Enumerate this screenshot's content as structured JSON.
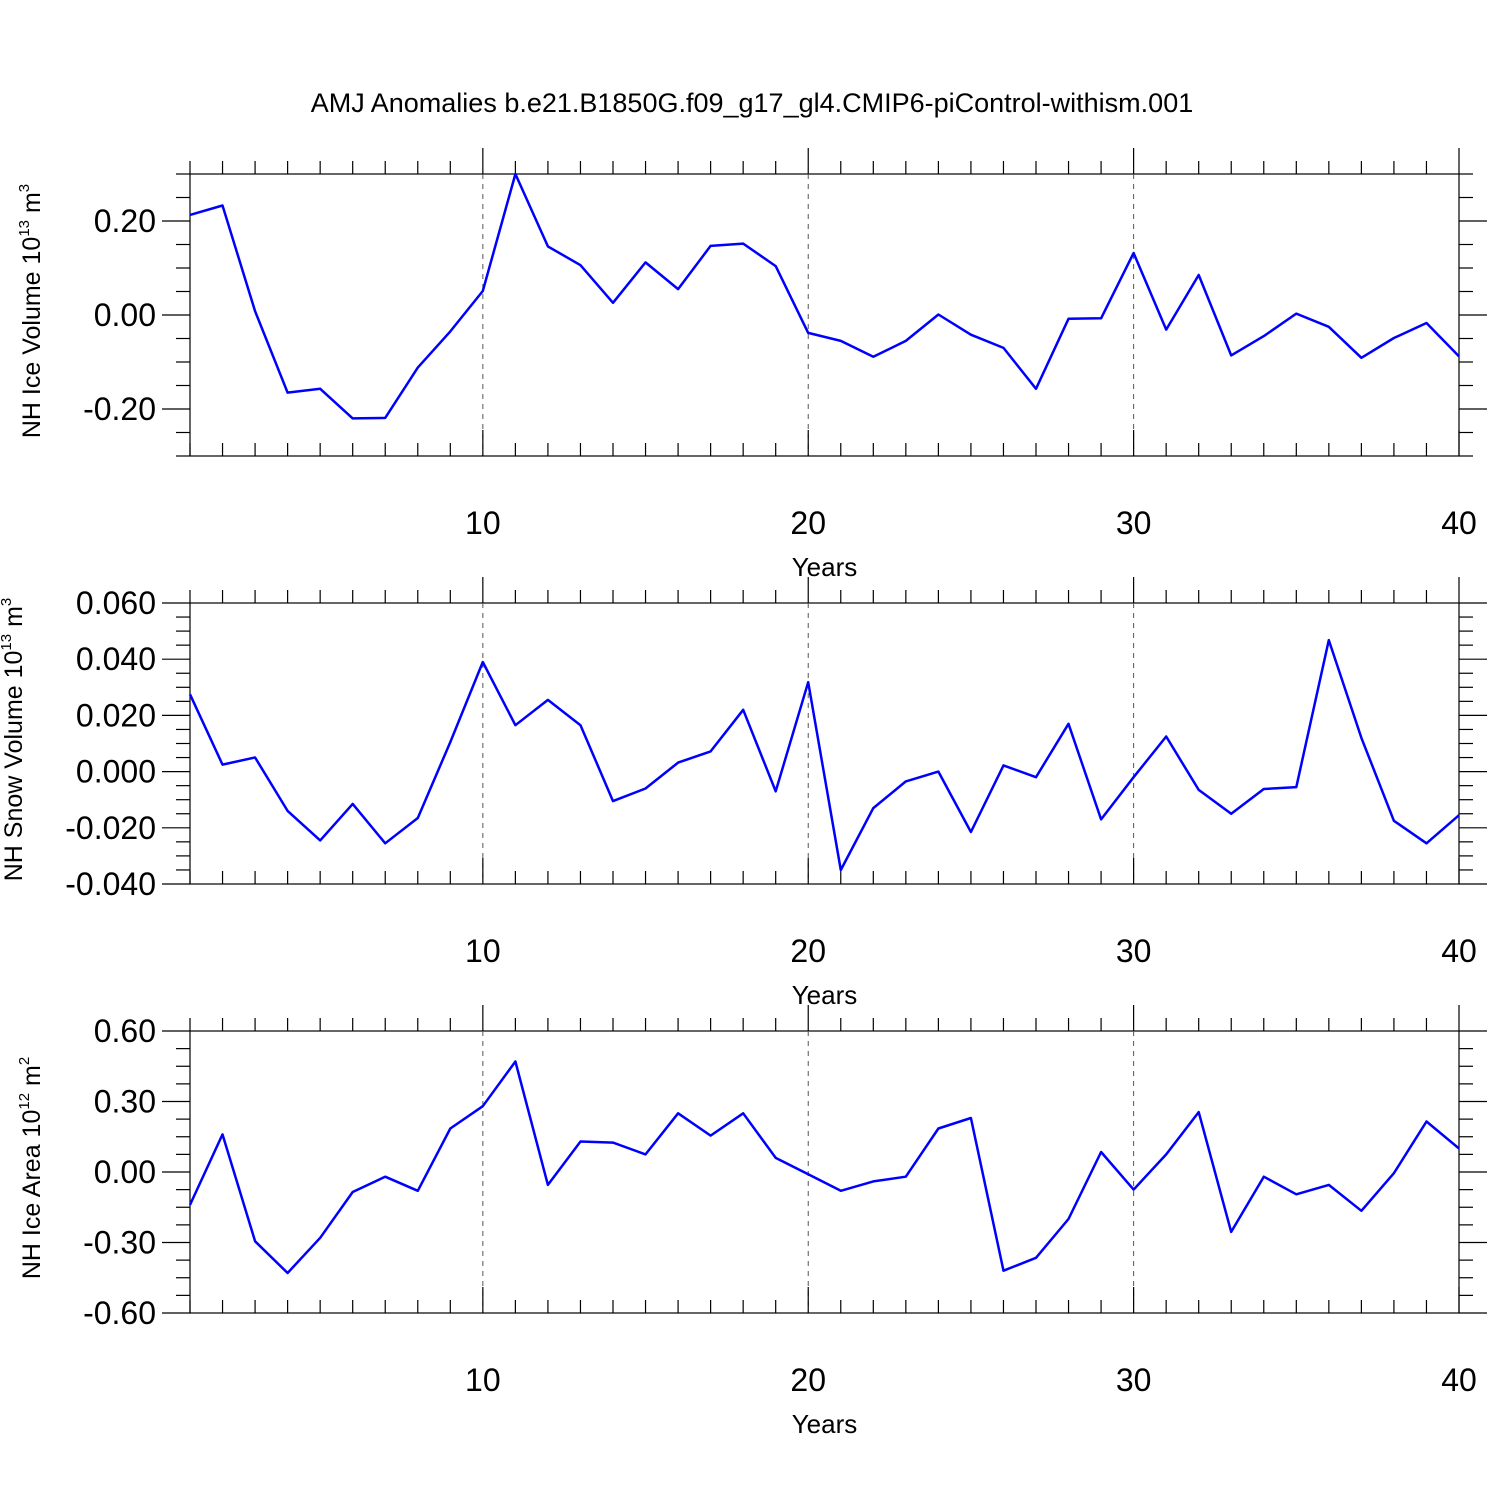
{
  "title": "AMJ Anomalies b.e21.B1850G.f09_g17_gl4.CMIP6-piControl-withism.001",
  "series_color": "#0000ff",
  "chart_data": [
    {
      "type": "line",
      "xlabel": "Years",
      "ylabel": {
        "text": "NH Ice Volume 10",
        "sup": "13",
        "unit": " m",
        "unit_sup": "3"
      },
      "xlim": [
        1,
        40
      ],
      "ylim": [
        -0.3,
        0.3
      ],
      "xticks": [
        10,
        20,
        30,
        40
      ],
      "xtick_labels": [
        "10",
        "20",
        "30",
        "40"
      ],
      "yticks": [
        -0.2,
        0.0,
        0.2
      ],
      "ytick_labels": [
        "-0.20",
        "0.00",
        "0.20"
      ],
      "grid_x": [
        10,
        20,
        30
      ],
      "x": [
        1,
        2,
        3,
        4,
        5,
        6,
        7,
        8,
        9,
        10,
        11,
        12,
        13,
        14,
        15,
        16,
        17,
        18,
        19,
        20,
        21,
        22,
        23,
        24,
        25,
        26,
        27,
        28,
        29,
        30,
        31,
        32,
        33,
        34,
        35,
        36,
        37,
        38,
        39,
        40
      ],
      "values": [
        0.213,
        0.233,
        0.008,
        -0.165,
        -0.157,
        -0.22,
        -0.219,
        -0.112,
        -0.035,
        0.051,
        0.3,
        0.146,
        0.106,
        0.026,
        0.112,
        0.055,
        0.147,
        0.152,
        0.104,
        -0.038,
        -0.055,
        -0.089,
        -0.055,
        0.001,
        -0.042,
        -0.07,
        -0.157,
        -0.008,
        -0.007,
        0.132,
        -0.031,
        0.085,
        -0.086,
        -0.045,
        0.003,
        -0.025,
        -0.091,
        -0.049,
        -0.017,
        -0.088
      ]
    },
    {
      "type": "line",
      "xlabel": "Years",
      "ylabel": {
        "text": "NH Snow Volume 10",
        "sup": "13",
        "unit": " m",
        "unit_sup": "3"
      },
      "xlim": [
        1,
        40
      ],
      "ylim": [
        -0.04,
        0.06
      ],
      "xticks": [
        10,
        20,
        30,
        40
      ],
      "xtick_labels": [
        "10",
        "20",
        "30",
        "40"
      ],
      "yticks": [
        -0.04,
        -0.02,
        0.0,
        0.02,
        0.04,
        0.06
      ],
      "ytick_labels": [
        "-0.040",
        "-0.020",
        "0.000",
        "0.020",
        "0.040",
        "0.060"
      ],
      "grid_x": [
        10,
        20,
        30
      ],
      "x": [
        1,
        2,
        3,
        4,
        5,
        6,
        7,
        8,
        9,
        10,
        11,
        12,
        13,
        14,
        15,
        16,
        17,
        18,
        19,
        20,
        21,
        22,
        23,
        24,
        25,
        26,
        27,
        28,
        29,
        30,
        31,
        32,
        33,
        34,
        35,
        36,
        37,
        38,
        39,
        40
      ],
      "values": [
        0.0275,
        0.0025,
        0.005,
        -0.014,
        -0.0245,
        -0.0115,
        -0.0255,
        -0.0165,
        0.0105,
        0.039,
        0.0165,
        0.0255,
        0.0165,
        -0.0105,
        -0.006,
        0.0032,
        0.0072,
        0.022,
        -0.007,
        0.0318,
        -0.035,
        -0.013,
        -0.0035,
        0.0,
        -0.0215,
        0.0022,
        -0.002,
        0.017,
        -0.017,
        -0.002,
        0.0125,
        -0.0065,
        -0.015,
        -0.0062,
        -0.0055,
        0.0468,
        0.012,
        -0.0175,
        -0.0255,
        -0.0155
      ]
    },
    {
      "type": "line",
      "xlabel": "Years",
      "ylabel": {
        "text": "NH Ice Area 10",
        "sup": "12",
        "unit": " m",
        "unit_sup": "2"
      },
      "xlim": [
        1,
        40
      ],
      "ylim": [
        -0.6,
        0.6
      ],
      "xticks": [
        10,
        20,
        30,
        40
      ],
      "xtick_labels": [
        "10",
        "20",
        "30",
        "40"
      ],
      "yticks": [
        -0.6,
        -0.3,
        0.0,
        0.3,
        0.6
      ],
      "ytick_labels": [
        "-0.60",
        "-0.30",
        "0.00",
        "0.30",
        "0.60"
      ],
      "grid_x": [
        10,
        20,
        30
      ],
      "x": [
        1,
        2,
        3,
        4,
        5,
        6,
        7,
        8,
        9,
        10,
        11,
        12,
        13,
        14,
        15,
        16,
        17,
        18,
        19,
        20,
        21,
        22,
        23,
        24,
        25,
        26,
        27,
        28,
        29,
        30,
        31,
        32,
        33,
        34,
        35,
        36,
        37,
        38,
        39,
        40
      ],
      "values": [
        -0.14,
        0.16,
        -0.295,
        -0.43,
        -0.28,
        -0.085,
        -0.02,
        -0.08,
        0.185,
        0.28,
        0.47,
        -0.055,
        0.13,
        0.125,
        0.075,
        0.25,
        0.155,
        0.25,
        0.06,
        -0.01,
        -0.08,
        -0.04,
        -0.02,
        0.185,
        0.23,
        -0.42,
        -0.365,
        -0.2,
        0.085,
        -0.075,
        0.075,
        0.255,
        -0.255,
        -0.02,
        -0.095,
        -0.055,
        -0.165,
        -0.005,
        0.215,
        0.1
      ]
    }
  ]
}
